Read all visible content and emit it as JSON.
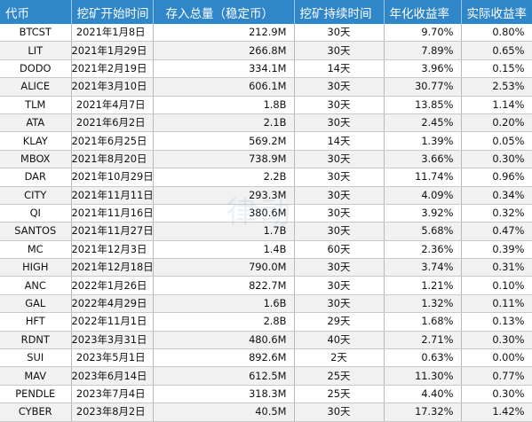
{
  "headers": [
    "代币",
    "挖矿开始时间",
    "存入总量（稳定币）",
    "挖矿持续时间",
    "年化收益率",
    "实际收益率"
  ],
  "rows": [
    [
      "BTCST",
      "2021年1月8日",
      "212.9M",
      "30天",
      "9.70%",
      "0.80%"
    ],
    [
      "LIT",
      "2021年1月29日",
      "266.8M",
      "30天",
      "7.89%",
      "0.65%"
    ],
    [
      "DODO",
      "2021年2月19日",
      "334.1M",
      "14天",
      "3.96%",
      "0.15%"
    ],
    [
      "ALICE",
      "2021年3月10日",
      "606.1M",
      "30天",
      "30.77%",
      "2.53%"
    ],
    [
      "TLM",
      "2021年4月7日",
      "1.8B",
      "30天",
      "13.85%",
      "1.14%"
    ],
    [
      "ATA",
      "2021年6月2日",
      "2.1B",
      "30天",
      "2.45%",
      "0.20%"
    ],
    [
      "KLAY",
      "2021年6月25日",
      "569.2M",
      "14天",
      "1.39%",
      "0.05%"
    ],
    [
      "MBOX",
      "2021年8月20日",
      "738.9M",
      "30天",
      "3.66%",
      "0.30%"
    ],
    [
      "DAR",
      "2021年10月29日",
      "2.2B",
      "30天",
      "11.74%",
      "0.96%"
    ],
    [
      "CITY",
      "2021年11月11日",
      "293.3M",
      "30天",
      "4.09%",
      "0.34%"
    ],
    [
      "QI",
      "2021年11月16日",
      "380.6M",
      "30天",
      "3.92%",
      "0.32%"
    ],
    [
      "SANTOS",
      "2021年11月27日",
      "1.7B",
      "30天",
      "5.68%",
      "0.47%"
    ],
    [
      "MC",
      "2021年12月3日",
      "1.4B",
      "60天",
      "2.36%",
      "0.39%"
    ],
    [
      "HIGH",
      "2021年12月18日",
      "790.0M",
      "30天",
      "3.74%",
      "0.31%"
    ],
    [
      "ANC",
      "2022年1月26日",
      "822.7M",
      "30天",
      "1.21%",
      "0.10%"
    ],
    [
      "GAL",
      "2022年4月29日",
      "1.6B",
      "30天",
      "1.32%",
      "0.11%"
    ],
    [
      "HFT",
      "2022年11月1日",
      "2.8B",
      "29天",
      "1.68%",
      "0.13%"
    ],
    [
      "RDNT",
      "2023年3月31日",
      "480.6M",
      "40天",
      "2.71%",
      "0.30%"
    ],
    [
      "SUI",
      "2023年5月1日",
      "892.6M",
      "2天",
      "0.63%",
      "0.00%"
    ],
    [
      "MAV",
      "2023年6月14日",
      "612.5M",
      "25天",
      "11.30%",
      "0.77%"
    ],
    [
      "PENDLE",
      "2023年7月4日",
      "318.3M",
      "25天",
      "4.40%",
      "0.30%"
    ],
    [
      "CYBER",
      "2023年8月2日",
      "40.5M",
      "30天",
      "17.32%",
      "1.42%"
    ]
  ],
  "watermark": "律动"
}
